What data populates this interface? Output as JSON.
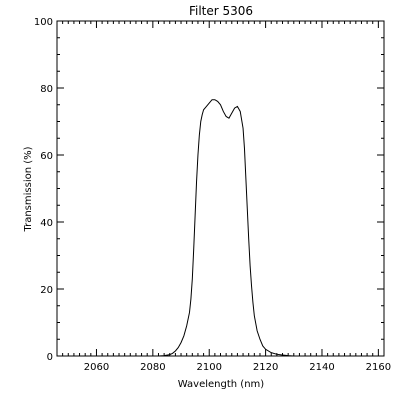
{
  "chart_data": {
    "type": "line",
    "title": "Filter 5306",
    "xlabel": "Wavelength (nm)",
    "ylabel": "Transmission (%)",
    "xlim": [
      2046,
      2162
    ],
    "ylim": [
      0,
      100
    ],
    "x_major_ticks": [
      2060,
      2080,
      2100,
      2120,
      2140,
      2160
    ],
    "x_minor_step": 2,
    "y_major_ticks": [
      0,
      20,
      40,
      60,
      80,
      100
    ],
    "y_minor_step": 5,
    "grid": false,
    "line_color": "#000000",
    "series": [
      {
        "x": [
          2082,
          2084,
          2086,
          2087,
          2088,
          2089,
          2090,
          2091,
          2092,
          2093,
          2093.5,
          2094,
          2094.5,
          2095,
          2095.5,
          2096,
          2096.5,
          2097,
          2097.5,
          2098,
          2099,
          2100,
          2101,
          2102,
          2103,
          2104,
          2104.5,
          2105,
          2106,
          2107,
          2108,
          2109,
          2110,
          2111,
          2112,
          2112.5,
          2113,
          2113.5,
          2114,
          2114.5,
          2115,
          2115.5,
          2116,
          2117,
          2118,
          2119,
          2120,
          2122,
          2124,
          2126,
          2128,
          2130
        ],
        "y": [
          0,
          0.1,
          0.4,
          0.8,
          1.5,
          2.5,
          4,
          6,
          9,
          13,
          17,
          23,
          32,
          42,
          52,
          60,
          66,
          70,
          72,
          73.5,
          74.5,
          75.5,
          76.5,
          76.5,
          76,
          75,
          74,
          73,
          71.5,
          71,
          72.5,
          74,
          74.5,
          73,
          68,
          62,
          53,
          44,
          35,
          27,
          21,
          16,
          12,
          7.5,
          5,
          3,
          2,
          1,
          0.5,
          0.3,
          0.1,
          0
        ]
      }
    ]
  }
}
